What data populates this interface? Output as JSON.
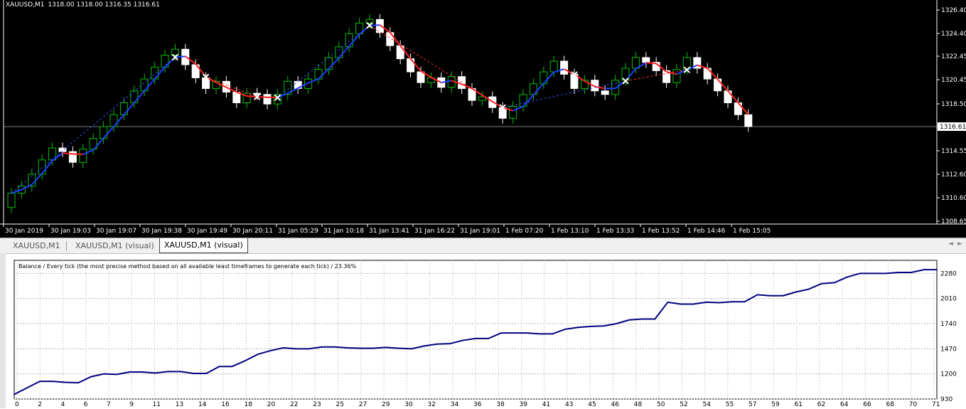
{
  "price_chart": {
    "symbol": "XAUUSD,M1",
    "ohlc": "1318.00 1318.00 1316.35 1316.61",
    "current_price": "1316.61",
    "y_ticks": [
      "1326.40",
      "1324.40",
      "1322.45",
      "1320.45",
      "1318.50",
      "1316.61",
      "1314.55",
      "1312.60",
      "1310.60",
      "1308.65"
    ],
    "x_ticks": [
      "30 Jan 2019",
      "30 Jan 19:03",
      "30 Jan 19:07",
      "30 Jan 19:38",
      "30 Jan 19:49",
      "30 Jan 20:11",
      "31 Jan 05:29",
      "31 Jan 10:18",
      "31 Jan 13:41",
      "31 Jan 16:22",
      "31 Jan 19:01",
      "1 Feb 07:20",
      "1 Feb 13:10",
      "1 Feb 13:33",
      "1 Feb 13:52",
      "1 Feb 14:46",
      "1 Feb 15:05"
    ],
    "colors": {
      "background": "#000000",
      "bull_candle": "#00c000",
      "bear_candle": "#ffffff",
      "ma_up": "#1f3fff",
      "ma_down": "#ff2020",
      "grid_line": "#808080"
    }
  },
  "tabs": [
    {
      "label": "XAUUSD,M1",
      "active": false
    },
    {
      "label": "XAUUSD,M1 (visual)",
      "active": false
    },
    {
      "label": "XAUUSD,M1 (visual)",
      "active": true
    }
  ],
  "tab_arrows": {
    "left": "◄",
    "right": "►"
  },
  "chart_data": {
    "type": "line",
    "title": "Balance / Every tick (the most precise method based on all available least timeframes to generate each tick) / 23.36%",
    "x": [
      0,
      1,
      2,
      3,
      4,
      5,
      6,
      7,
      8,
      9,
      10,
      11,
      12,
      13,
      14,
      15,
      16,
      17,
      18,
      19,
      20,
      21,
      22,
      23,
      24,
      25,
      26,
      27,
      28,
      29,
      30,
      31,
      32,
      33,
      34,
      35,
      36,
      37,
      38,
      39,
      40,
      41,
      42,
      43,
      44,
      45,
      46,
      47,
      48,
      49,
      50,
      51,
      52,
      53,
      54,
      55,
      56,
      57,
      58,
      59,
      60,
      61,
      62,
      63,
      64,
      65,
      66,
      67,
      68,
      69,
      70,
      71,
      72
    ],
    "series": [
      {
        "values": [
          980,
          1050,
          1120,
          1120,
          1110,
          1105,
          1170,
          1200,
          1195,
          1220,
          1220,
          1210,
          1225,
          1225,
          1205,
          1205,
          1280,
          1280,
          1340,
          1410,
          1450,
          1480,
          1470,
          1470,
          1490,
          1490,
          1480,
          1475,
          1475,
          1485,
          1475,
          1470,
          1500,
          1520,
          1525,
          1560,
          1580,
          1580,
          1640,
          1640,
          1640,
          1630,
          1630,
          1680,
          1700,
          1710,
          1715,
          1740,
          1780,
          1790,
          1790,
          1970,
          1950,
          1950,
          1970,
          1965,
          1975,
          1975,
          2050,
          2040,
          2040,
          2080,
          2110,
          2170,
          2180,
          2240,
          2280,
          2280,
          2280,
          2290,
          2290,
          2320,
          2320
        ]
      }
    ],
    "y_ticks": [
      "2280",
      "2010",
      "1740",
      "1470",
      "1200",
      "930"
    ],
    "x_ticks": [
      "0",
      "2",
      "4",
      "6",
      "7",
      "9",
      "11",
      "13",
      "14",
      "16",
      "18",
      "20",
      "22",
      "23",
      "25",
      "27",
      "29",
      "30",
      "32",
      "34",
      "36",
      "38",
      "39",
      "41",
      "43",
      "45",
      "46",
      "48",
      "50",
      "52",
      "54",
      "55",
      "57",
      "59",
      "61",
      "62",
      "64",
      "66",
      "68",
      "70",
      "71"
    ],
    "ylim": [
      930,
      2420
    ],
    "xlim": [
      0,
      72
    ],
    "grid": true,
    "line_color": "#000080"
  }
}
